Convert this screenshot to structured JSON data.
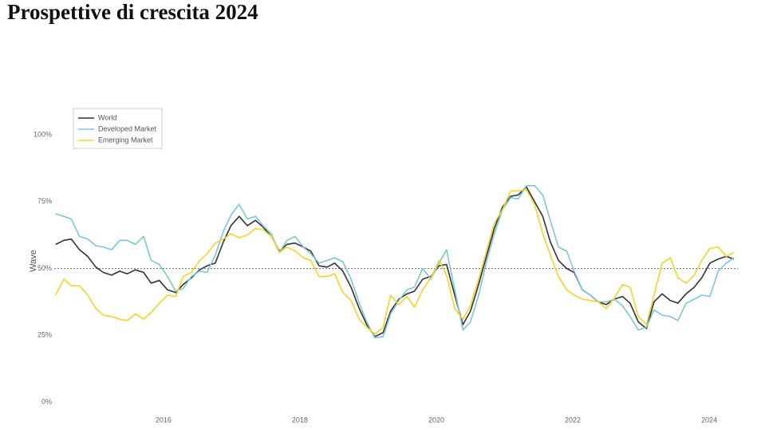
{
  "chart_data": {
    "type": "line",
    "title": "Prospettive di crescita 2024",
    "y_label": "Wave",
    "x": [
      2014.42,
      2014.54,
      2014.65,
      2014.77,
      2014.89,
      2015.01,
      2015.12,
      2015.24,
      2015.36,
      2015.47,
      2015.59,
      2015.71,
      2015.82,
      2015.94,
      2016.06,
      2016.18,
      2016.29,
      2016.41,
      2016.53,
      2016.64,
      2016.76,
      2016.88,
      2016.99,
      2017.11,
      2017.23,
      2017.35,
      2017.46,
      2017.58,
      2017.7,
      2017.81,
      2017.93,
      2018.05,
      2018.16,
      2018.28,
      2018.4,
      2018.51,
      2018.63,
      2018.75,
      2018.87,
      2018.98,
      2019.1,
      2019.22,
      2019.33,
      2019.45,
      2019.57,
      2019.68,
      2019.8,
      2019.92,
      2020.04,
      2020.15,
      2020.27,
      2020.39,
      2020.5,
      2020.62,
      2020.74,
      2020.85,
      2020.97,
      2021.09,
      2021.2,
      2021.32,
      2021.44,
      2021.56,
      2021.67,
      2021.79,
      2021.91,
      2022.02,
      2022.14,
      2022.26,
      2022.37,
      2022.49,
      2022.61,
      2022.73,
      2022.84,
      2022.96,
      2023.08,
      2023.19,
      2023.31,
      2023.43,
      2023.54,
      2023.66,
      2023.78,
      2023.89,
      2024.01,
      2024.13,
      2024.25,
      2024.36
    ],
    "series": [
      {
        "name": "World",
        "color": "#333333",
        "values": [
          59,
          60.5,
          61,
          57,
          54.5,
          50.5,
          48.5,
          47.5,
          49,
          48,
          49.5,
          48.5,
          44.5,
          45.5,
          42,
          41,
          44,
          46.5,
          49.5,
          51,
          52,
          60,
          66,
          69.5,
          66,
          68,
          65.5,
          62,
          56.5,
          59,
          59.5,
          58,
          56.5,
          51,
          50.5,
          52,
          49,
          43,
          35,
          29,
          24.5,
          26,
          34,
          38.5,
          40.5,
          41.5,
          46,
          47,
          51,
          51.5,
          40,
          29,
          34,
          44,
          55,
          65,
          73,
          77,
          77.5,
          80.5,
          75,
          69.5,
          60,
          53,
          50,
          48.5,
          42,
          40,
          37.5,
          36.5,
          38.5,
          39.5,
          37,
          30,
          27.5,
          37.5,
          40.5,
          38,
          37,
          40.5,
          43,
          46.5,
          52,
          53.5,
          54.5,
          53.5
        ]
      },
      {
        "name": "Developed Market",
        "color": "#7ac7d6",
        "values": [
          70.5,
          69.5,
          68.5,
          62,
          61,
          58.5,
          58,
          57,
          60.5,
          60.5,
          59,
          62,
          53,
          51.5,
          47,
          41.5,
          42.5,
          47,
          49,
          48.5,
          55,
          64,
          70,
          74,
          68.5,
          69.5,
          66,
          63,
          56,
          60.5,
          62,
          58,
          55.5,
          52,
          53,
          54,
          52.5,
          46,
          37,
          30,
          24,
          24.5,
          33,
          38,
          42,
          43,
          50,
          46,
          52,
          57,
          42,
          27,
          30,
          40,
          53,
          63,
          72,
          76.5,
          76,
          81,
          81,
          77.5,
          68,
          58,
          56.5,
          49,
          42,
          40,
          37.5,
          37.5,
          38.5,
          36,
          32,
          27,
          28,
          34.5,
          32.5,
          32,
          30.5,
          37,
          38.5,
          40,
          39.5,
          49,
          52,
          54
        ]
      },
      {
        "name": "Emerging Market",
        "color": "#f5d327",
        "values": [
          40,
          46,
          43.5,
          43.5,
          40,
          35,
          32.5,
          32,
          31,
          30.5,
          33,
          31,
          33.5,
          37,
          40,
          39.5,
          47,
          48.5,
          53,
          55.5,
          59.5,
          61,
          63,
          61.5,
          62.5,
          65,
          64.5,
          62,
          56,
          58,
          56.5,
          54,
          53,
          47,
          47,
          48,
          41,
          38,
          31,
          28,
          25.5,
          28,
          40,
          36.5,
          39.5,
          35.5,
          42,
          46.5,
          53,
          47.5,
          35,
          31,
          36,
          46,
          57,
          67,
          72,
          79,
          79,
          79.5,
          74,
          63,
          55,
          47,
          42,
          40,
          38.5,
          38,
          37.5,
          35,
          39,
          44,
          43,
          32,
          29,
          40,
          52,
          54,
          46.5,
          44.5,
          47.5,
          53,
          57.5,
          58,
          54.5,
          56
        ]
      }
    ],
    "xlim": [
      2014.4,
      2024.42
    ],
    "xticks": [
      2016,
      2018,
      2020,
      2022,
      2024
    ],
    "ylim": [
      0,
      100
    ],
    "yticks": [
      {
        "value": 0,
        "label": "0%"
      },
      {
        "value": 25,
        "label": "25%"
      },
      {
        "value": 50,
        "label": "50%"
      },
      {
        "value": 75,
        "label": "75%"
      },
      {
        "value": 100,
        "label": "100%"
      }
    ],
    "reference_line": 50,
    "grid": false,
    "legend": "upper left"
  }
}
